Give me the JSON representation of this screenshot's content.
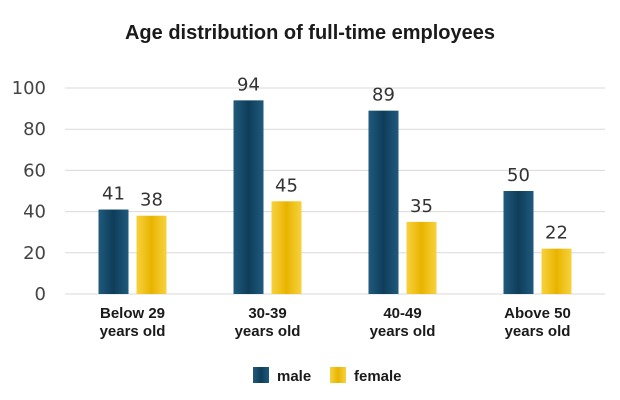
{
  "chart_data": {
    "type": "bar",
    "title": "Age distribution of full-time employees",
    "categories": [
      [
        "Below 29",
        "years old"
      ],
      [
        "30-39",
        "years old"
      ],
      [
        "40-49",
        "years old"
      ],
      [
        "Above 50",
        "years old"
      ]
    ],
    "series": [
      {
        "name": "male",
        "values": [
          41,
          94,
          89,
          50
        ],
        "color": "#1c5272"
      },
      {
        "name": "female",
        "values": [
          38,
          45,
          35,
          22
        ],
        "color": "#f2c01a"
      }
    ],
    "y_ticks": [
      "0",
      "20",
      "40",
      "60",
      "80",
      "100"
    ],
    "ylim": [
      0,
      100
    ],
    "grid": true,
    "legend_position": "bottom"
  }
}
